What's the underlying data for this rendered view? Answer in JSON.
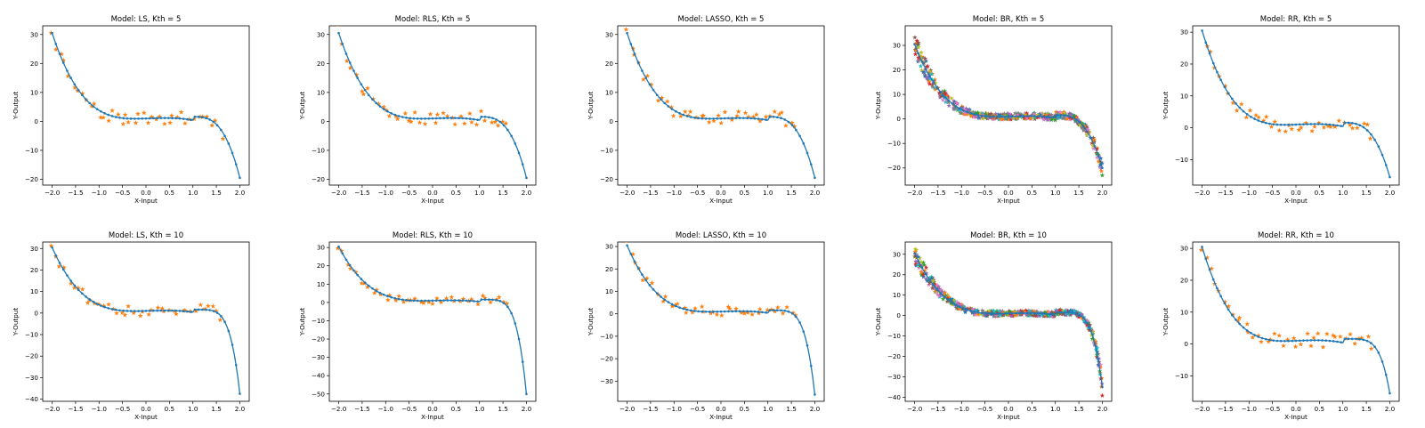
{
  "figure": {
    "rows": 2,
    "cols": 5
  },
  "colors": {
    "fit_line": "#1f77b4",
    "samples": "#ff7f0e",
    "multi_samples": [
      "#1f77b4",
      "#ff7f0e",
      "#2ca02c",
      "#d62728",
      "#9467bd",
      "#8c564b",
      "#e377c2",
      "#7f7f7f",
      "#bcbd22",
      "#17becf"
    ]
  },
  "chart_data": [
    {
      "type": "scatter",
      "title": "Model: LS, Kth = 5",
      "xlabel": "X-Input",
      "ylabel": "Y-Output",
      "xlim": [
        -2.2,
        2.2
      ],
      "ylim": [
        -22,
        33
      ],
      "xticks": [
        -2.0,
        -1.5,
        -1.0,
        -0.5,
        0.0,
        0.5,
        1.0,
        1.5,
        2.0
      ],
      "yticks": [
        -20,
        -10,
        0,
        10,
        20,
        30
      ],
      "model": "LS",
      "kth": 5,
      "multi": false,
      "curve_y_end": -19.5,
      "sample_seed": 11
    },
    {
      "type": "scatter",
      "title": "Model: RLS, Kth = 5",
      "xlabel": "X-Input",
      "ylabel": "Y-Output",
      "xlim": [
        -2.2,
        2.2
      ],
      "ylim": [
        -22,
        33
      ],
      "xticks": [
        -2.0,
        -1.5,
        -1.0,
        -0.5,
        0.0,
        0.5,
        1.0,
        1.5,
        2.0
      ],
      "yticks": [
        -20,
        -10,
        0,
        10,
        20,
        30
      ],
      "model": "RLS",
      "kth": 5,
      "multi": false,
      "curve_y_end": -19.5,
      "sample_seed": 11
    },
    {
      "type": "scatter",
      "title": "Model: LASSO, Kth = 5",
      "xlabel": "X-Input",
      "ylabel": "Y-Output",
      "xlim": [
        -2.2,
        2.2
      ],
      "ylim": [
        -22,
        33
      ],
      "xticks": [
        -2.0,
        -1.5,
        -1.0,
        -0.5,
        0.0,
        0.5,
        1.0,
        1.5,
        2.0
      ],
      "yticks": [
        -20,
        -10,
        0,
        10,
        20,
        30
      ],
      "model": "LASSO",
      "kth": 5,
      "multi": false,
      "curve_y_end": -19.5,
      "sample_seed": 11
    },
    {
      "type": "scatter",
      "title": "Model: BR, Kth = 5",
      "xlabel": "X-Input",
      "ylabel": "Y-Output",
      "xlim": [
        -2.2,
        2.2
      ],
      "ylim": [
        -27,
        38
      ],
      "xticks": [
        -2.0,
        -1.5,
        -1.0,
        -0.5,
        0.0,
        0.5,
        1.0,
        1.5,
        2.0
      ],
      "yticks": [
        -20,
        -10,
        0,
        10,
        20,
        30
      ],
      "model": "BR",
      "kth": 5,
      "multi": true,
      "curve_y_end": -20,
      "sample_seed": 5
    },
    {
      "type": "scatter",
      "title": "Model: RR, Kth = 5",
      "xlabel": "X-Input",
      "ylabel": "Y-Output",
      "xlim": [
        -2.2,
        2.2
      ],
      "ylim": [
        -18,
        32
      ],
      "xticks": [
        -2.0,
        -1.5,
        -1.0,
        -0.5,
        0.0,
        0.5,
        1.0,
        1.5,
        2.0
      ],
      "yticks": [
        -10,
        0,
        10,
        20,
        30
      ],
      "model": "RR",
      "kth": 5,
      "multi": false,
      "curve_y_end": -15.5,
      "sample_seed": 23
    },
    {
      "type": "scatter",
      "title": "Model: LS, Kth = 10",
      "xlabel": "X-Input",
      "ylabel": "Y-Output",
      "xlim": [
        -2.2,
        2.2
      ],
      "ylim": [
        -41,
        33
      ],
      "xticks": [
        -2.0,
        -1.5,
        -1.0,
        -0.5,
        0.0,
        0.5,
        1.0,
        1.5,
        2.0
      ],
      "yticks": [
        -40,
        -30,
        -20,
        -10,
        0,
        10,
        20,
        30
      ],
      "model": "LS",
      "kth": 10,
      "multi": false,
      "curve_y_end": -37.5,
      "sample_seed": 11
    },
    {
      "type": "scatter",
      "title": "Model: RLS, Kth = 10",
      "xlabel": "X-Input",
      "ylabel": "Y-Output",
      "xlim": [
        -2.2,
        2.2
      ],
      "ylim": [
        -54,
        33
      ],
      "xticks": [
        -2.0,
        -1.5,
        -1.0,
        -0.5,
        0.0,
        0.5,
        1.0,
        1.5,
        2.0
      ],
      "yticks": [
        -50,
        -40,
        -30,
        -20,
        -10,
        0,
        10,
        20,
        30
      ],
      "model": "RLS",
      "kth": 10,
      "multi": false,
      "curve_y_end": -50,
      "sample_seed": 11
    },
    {
      "type": "scatter",
      "title": "Model: LASSO, Kth = 10",
      "xlabel": "X-Input",
      "ylabel": "Y-Output",
      "xlim": [
        -2.2,
        2.2
      ],
      "ylim": [
        -39,
        32
      ],
      "xticks": [
        -2.0,
        -1.5,
        -1.0,
        -0.5,
        0.0,
        0.5,
        1.0,
        1.5,
        2.0
      ],
      "yticks": [
        -30,
        -20,
        -10,
        0,
        10,
        20,
        30
      ],
      "model": "LASSO",
      "kth": 10,
      "multi": false,
      "curve_y_end": -36,
      "sample_seed": 11
    },
    {
      "type": "scatter",
      "title": "Model: BR, Kth = 10",
      "xlabel": "X-Input",
      "ylabel": "Y-Output",
      "xlim": [
        -2.2,
        2.2
      ],
      "ylim": [
        -42,
        36
      ],
      "xticks": [
        -2.0,
        -1.5,
        -1.0,
        -0.5,
        0.0,
        0.5,
        1.0,
        1.5,
        2.0
      ],
      "yticks": [
        -40,
        -30,
        -20,
        -10,
        0,
        10,
        20,
        30
      ],
      "model": "BR",
      "kth": 10,
      "multi": true,
      "curve_y_end": -35,
      "sample_seed": 5
    },
    {
      "type": "scatter",
      "title": "Model: RR, Kth = 10",
      "xlabel": "X-Input",
      "ylabel": "Y-Output",
      "xlim": [
        -2.2,
        2.2
      ],
      "ylim": [
        -18,
        32
      ],
      "xticks": [
        -2.0,
        -1.5,
        -1.0,
        -0.5,
        0.0,
        0.5,
        1.0,
        1.5,
        2.0
      ],
      "yticks": [
        -10,
        0,
        10,
        20,
        30
      ],
      "model": "RR",
      "kth": 10,
      "multi": false,
      "curve_y_end": -15.5,
      "sample_seed": 23
    }
  ]
}
